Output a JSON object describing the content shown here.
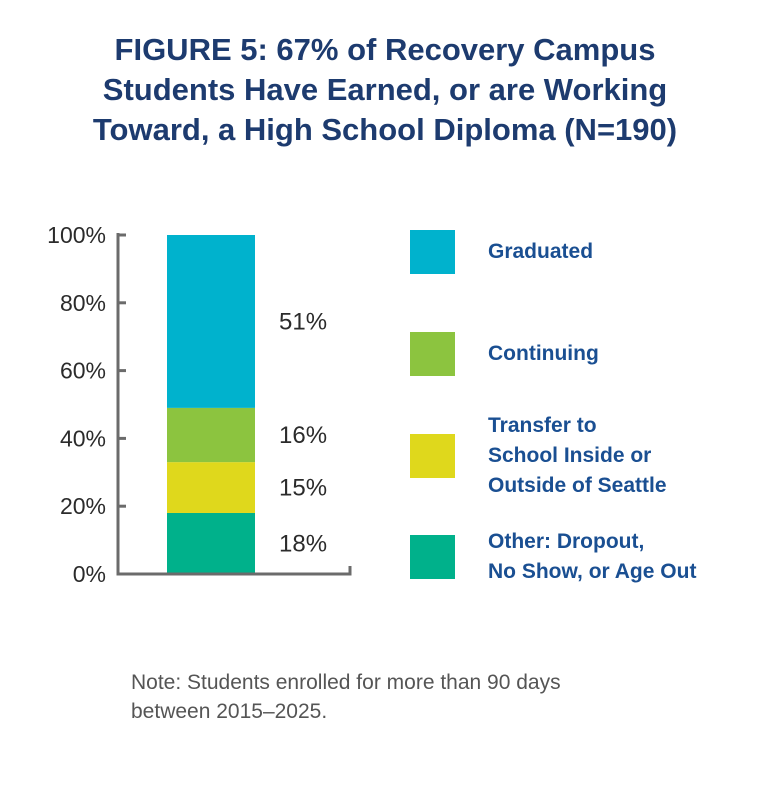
{
  "title_lines": [
    "FIGURE 5: 67% of Recovery Campus",
    "Students Have Earned, or are Working",
    "Toward, a High School Diploma (N=190)"
  ],
  "chart_data": {
    "type": "bar",
    "stacked": true,
    "categories": [
      ""
    ],
    "series": [
      {
        "name": "Graduated",
        "values": [
          51
        ],
        "label": "51%",
        "color": "#00b2cd"
      },
      {
        "name": "Continuing",
        "values": [
          16
        ],
        "label": "16%",
        "color": "#8cc43f"
      },
      {
        "name": "Transfer to School Inside or Outside of Seattle",
        "values": [
          15
        ],
        "label": "15%",
        "color": "#dfd81c"
      },
      {
        "name": "Other: Dropout, No Show, or Age Out",
        "values": [
          18
        ],
        "label": "18%",
        "color": "#00b18b"
      }
    ],
    "ylim": [
      0,
      100
    ],
    "yticks": [
      "0%",
      "20%",
      "40%",
      "60%",
      "80%",
      "100%"
    ],
    "grid": false,
    "legend_position": "right"
  },
  "legend": [
    {
      "lines": [
        "Graduated"
      ],
      "color": "#00b2cd",
      "icon": "square-swatch"
    },
    {
      "lines": [
        "Continuing"
      ],
      "color": "#8cc43f",
      "icon": "square-swatch"
    },
    {
      "lines": [
        "Transfer to",
        "School Inside or",
        "Outside of Seattle"
      ],
      "color": "#dfd81c",
      "icon": "square-swatch"
    },
    {
      "lines": [
        "Other: Dropout,",
        "No Show, or Age Out"
      ],
      "color": "#00b18b",
      "icon": "square-swatch"
    }
  ],
  "note_lines": [
    "Note: Students enrolled for more than 90 days",
    "between 2015–2025."
  ]
}
